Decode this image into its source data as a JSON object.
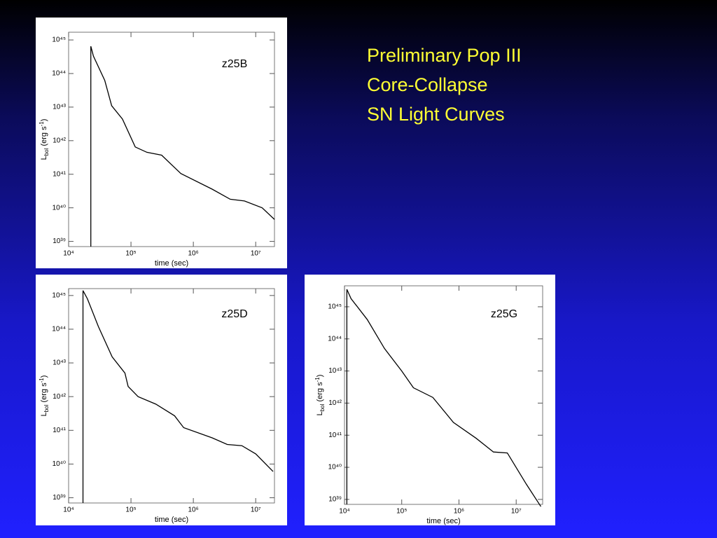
{
  "title_lines": [
    "Preliminary Pop III",
    "Core-Collapse",
    "SN Light Curves"
  ],
  "chart_data": [
    {
      "type": "line",
      "title": "z25B",
      "xlabel": "time (sec)",
      "ylabel": {
        "main": "L",
        "sub": "bol",
        "unit": " (erg s",
        "sup": "-1",
        "close": ")"
      },
      "log_x": true,
      "log_y": true,
      "color": "#000000",
      "xlim": [
        10000,
        20000000
      ],
      "ylim": [
        7e+38,
        1.7e+45
      ],
      "xticks": [
        {
          "value": 10000,
          "label": "10⁴"
        },
        {
          "value": 100000,
          "label": "10⁵"
        },
        {
          "value": 1000000,
          "label": "10⁶"
        },
        {
          "value": 10000000,
          "label": "10⁷"
        }
      ],
      "yticks": [
        {
          "value": 1e+39,
          "label": "10³⁹"
        },
        {
          "value": 1e+40,
          "label": "10⁴⁰"
        },
        {
          "value": 1e+41,
          "label": "10⁴¹"
        },
        {
          "value": 1e+42,
          "label": "10⁴²"
        },
        {
          "value": 1e+43,
          "label": "10⁴³"
        },
        {
          "value": 1e+44,
          "label": "10⁴⁴"
        },
        {
          "value": 1e+45,
          "label": "10⁴⁵"
        }
      ],
      "x": [
        22700,
        22700,
        25000,
        38000,
        49000,
        73000,
        117000,
        180000,
        310000,
        630000,
        2000000,
        3900000,
        6600000,
        12700000,
        20000000
      ],
      "values": [
        7e+38,
        6.5e+44,
        3.3e+44,
        6.2e+43,
        1.1e+43,
        4.4e+42,
        6.5e+41,
        4.5e+41,
        3.7e+41,
        1.05e+41,
        3.6e+40,
        1.8e+40,
        1.6e+40,
        1e+40,
        4.5e+39
      ]
    },
    {
      "type": "line",
      "title": "z25D",
      "xlabel": "time (sec)",
      "ylabel": {
        "main": "L",
        "sub": "bol",
        "unit": " (erg s",
        "sup": "-1",
        "close": ")"
      },
      "log_x": true,
      "log_y": true,
      "color": "#000000",
      "xlim": [
        10000,
        20000000
      ],
      "ylim": [
        7e+38,
        1.6e+45
      ],
      "xticks": [
        {
          "value": 10000,
          "label": "10⁴"
        },
        {
          "value": 100000,
          "label": "10⁵"
        },
        {
          "value": 1000000,
          "label": "10⁶"
        },
        {
          "value": 10000000,
          "label": "10⁷"
        }
      ],
      "yticks": [
        {
          "value": 1e+39,
          "label": "10³⁹"
        },
        {
          "value": 1e+40,
          "label": "10⁴⁰"
        },
        {
          "value": 1e+41,
          "label": "10⁴¹"
        },
        {
          "value": 1e+42,
          "label": "10⁴²"
        },
        {
          "value": 1e+43,
          "label": "10⁴³"
        },
        {
          "value": 1e+44,
          "label": "10⁴⁴"
        },
        {
          "value": 1e+45,
          "label": "10⁴⁵"
        }
      ],
      "x": [
        17000,
        17000,
        20000,
        30000,
        50000,
        80000,
        90000,
        130000,
        250000,
        500000,
        700000,
        2000000,
        3500000,
        6000000,
        10000000,
        19000000
      ],
      "values": [
        7e+38,
        1.4e+45,
        8e+44,
        1.2e+44,
        1.5e+43,
        5e+42,
        2e+42,
        1e+42,
        6e+41,
        2.7e+41,
        1.2e+41,
        6e+40,
        3.8e+40,
        3.5e+40,
        2e+40,
        6e+39
      ]
    },
    {
      "type": "line",
      "title": "z25G",
      "xlabel": "time (sec)",
      "ylabel": {
        "main": "L",
        "sub": "bol",
        "unit": " (erg s",
        "sup": "-1",
        "close": ")"
      },
      "log_x": true,
      "log_y": true,
      "color": "#000000",
      "xlim": [
        10000,
        29000000
      ],
      "ylim": [
        7e+38,
        4.5e+45
      ],
      "xticks": [
        {
          "value": 10000,
          "label": "10⁴"
        },
        {
          "value": 100000,
          "label": "10⁵"
        },
        {
          "value": 1000000,
          "label": "10⁶"
        },
        {
          "value": 10000000,
          "label": "10⁷"
        }
      ],
      "yticks": [
        {
          "value": 1e+39,
          "label": "10³⁹"
        },
        {
          "value": 1e+40,
          "label": "10⁴⁰"
        },
        {
          "value": 1e+41,
          "label": "10⁴¹"
        },
        {
          "value": 1e+42,
          "label": "10⁴²"
        },
        {
          "value": 1e+43,
          "label": "10⁴³"
        },
        {
          "value": 1e+44,
          "label": "10⁴⁴"
        },
        {
          "value": 1e+45,
          "label": "10⁴⁵"
        }
      ],
      "x": [
        11000,
        11000,
        13000,
        25000,
        50000,
        100000,
        160000,
        350000,
        800000,
        2000000,
        4000000,
        7000000,
        15000000,
        27000000
      ],
      "values": [
        7e+38,
        3.5e+45,
        1.8e+45,
        4e+44,
        5e+43,
        1e+43,
        3e+42,
        1.5e+42,
        2.5e+41,
        8e+40,
        3e+40,
        2.8e+40,
        3e+39,
        6e+38
      ]
    }
  ]
}
